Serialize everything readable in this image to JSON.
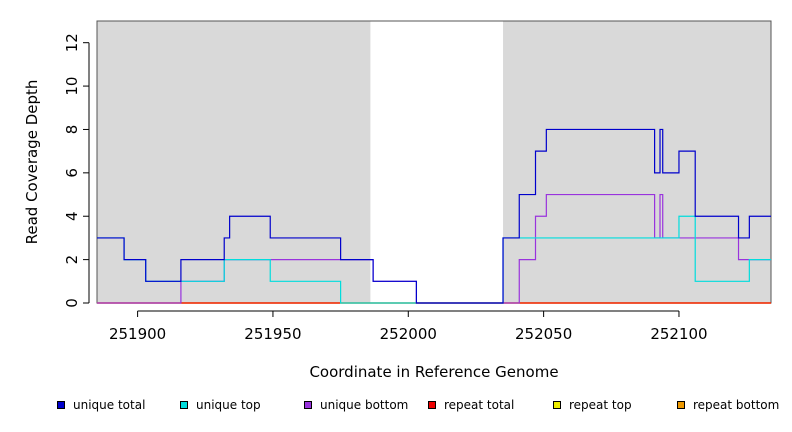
{
  "chart_data": {
    "type": "line",
    "title": "",
    "xlabel": "Coordinate in Reference Genome",
    "ylabel": "Read Coverage Depth",
    "xlim": [
      251885,
      252134
    ],
    "ylim": [
      0,
      13
    ],
    "x_ticks": [
      251900,
      251950,
      252000,
      252050,
      252100
    ],
    "x_tick_labels": [
      "251900",
      "251950",
      "252000",
      "252050",
      "252100"
    ],
    "y_ticks": [
      0,
      2,
      4,
      6,
      8,
      10,
      12
    ],
    "y_tick_labels": [
      "0",
      "2",
      "4",
      "6",
      "8",
      "10",
      "12"
    ],
    "shaded_regions": [
      {
        "x0": 251885,
        "x1": 251986,
        "color": "#d9d9d9"
      },
      {
        "x0": 252035,
        "x1": 252134,
        "color": "#d9d9d9"
      }
    ],
    "legend_position": "bottom",
    "series": [
      {
        "name": "unique total",
        "color": "#0000cc",
        "steps": [
          [
            251885,
            3
          ],
          [
            251895,
            2
          ],
          [
            251903,
            1
          ],
          [
            251916,
            2
          ],
          [
            251932,
            3
          ],
          [
            251934,
            4
          ],
          [
            251949,
            3
          ],
          [
            251975,
            2
          ],
          [
            251987,
            1
          ],
          [
            252003,
            0
          ],
          [
            252035,
            3
          ],
          [
            252041,
            5
          ],
          [
            252047,
            7
          ],
          [
            252051,
            8
          ],
          [
            252091,
            6
          ],
          [
            252093,
            8
          ],
          [
            252094,
            6
          ],
          [
            252100,
            7
          ],
          [
            252106,
            4
          ],
          [
            252122,
            3
          ],
          [
            252126,
            4
          ],
          [
            252134,
            4
          ]
        ]
      },
      {
        "name": "unique top",
        "color": "#00dddd",
        "steps": [
          [
            251885,
            3
          ],
          [
            251895,
            2
          ],
          [
            251903,
            1
          ],
          [
            251932,
            2
          ],
          [
            251949,
            1
          ],
          [
            251975,
            0
          ],
          [
            252035,
            3
          ],
          [
            252100,
            4
          ],
          [
            252106,
            1
          ],
          [
            252126,
            2
          ],
          [
            252134,
            2
          ]
        ]
      },
      {
        "name": "unique bottom",
        "color": "#9933dd",
        "steps": [
          [
            251885,
            0
          ],
          [
            251916,
            1
          ],
          [
            251932,
            2
          ],
          [
            251975,
            2
          ],
          [
            251987,
            1
          ],
          [
            252003,
            0
          ],
          [
            252041,
            2
          ],
          [
            252047,
            4
          ],
          [
            252051,
            5
          ],
          [
            252091,
            3
          ],
          [
            252093,
            5
          ],
          [
            252094,
            3
          ],
          [
            252122,
            2
          ],
          [
            252134,
            2
          ]
        ]
      },
      {
        "name": "repeat total",
        "color": "#ee0000",
        "steps": [
          [
            251885,
            0
          ],
          [
            252134,
            0
          ]
        ]
      },
      {
        "name": "repeat top",
        "color": "#eeee00",
        "steps": [
          [
            251885,
            0
          ],
          [
            252134,
            0
          ]
        ]
      },
      {
        "name": "repeat bottom",
        "color": "#ee9900",
        "steps": [
          [
            251885,
            0
          ],
          [
            252134,
            0
          ]
        ]
      }
    ]
  },
  "legend": [
    {
      "label": "unique total",
      "color": "#0000cc"
    },
    {
      "label": "unique top",
      "color": "#00dddd"
    },
    {
      "label": "unique bottom",
      "color": "#9933dd"
    },
    {
      "label": "repeat total",
      "color": "#ee0000"
    },
    {
      "label": "repeat top",
      "color": "#eeee00"
    },
    {
      "label": "repeat bottom",
      "color": "#ee9900"
    }
  ]
}
